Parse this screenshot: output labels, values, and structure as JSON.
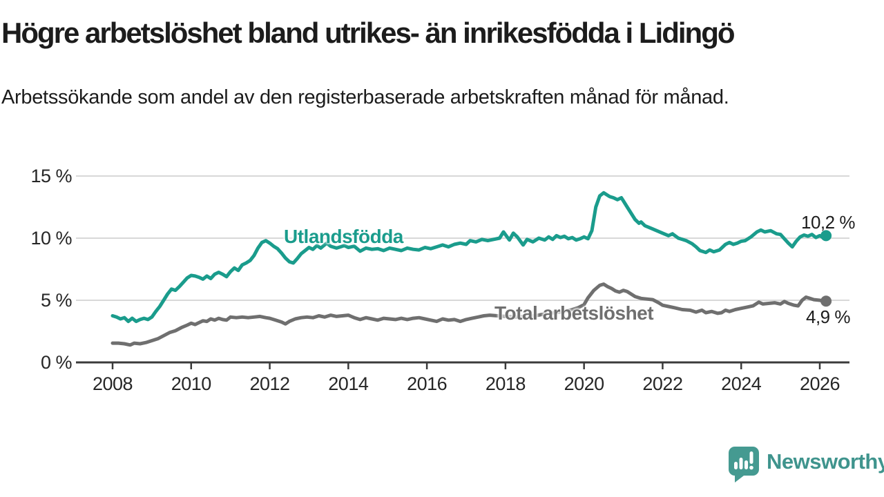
{
  "title": "Högre arbetslöshet bland utrikes- än inrikesfödda i Lidingö",
  "subtitle": "Arbetssökande som andel av den registerbaserade arbetskraften månad för månad.",
  "branding": {
    "logo_text": "Newsworthy",
    "logo_color": "#3f948d",
    "icon_color": "#459a91"
  },
  "chart_data": {
    "type": "line",
    "title": "Högre arbetslöshet bland utrikes- än inrikesfödda i Lidingö",
    "xlabel": "",
    "ylabel": "",
    "x_ticks": [
      2008,
      2010,
      2012,
      2014,
      2016,
      2018,
      2020,
      2022,
      2024,
      2026
    ],
    "y_ticks": [
      0,
      5,
      10,
      15
    ],
    "y_tick_labels": [
      "0 %",
      "5 %",
      "10 %",
      "15 %"
    ],
    "ylim": [
      0,
      16.5
    ],
    "xlim": [
      2007.05,
      2026.75
    ],
    "grid": "horizontal",
    "legend_position": "inline-labels",
    "axis_color": "#3a3a3a",
    "grid_color": "#d8d8d8",
    "series": [
      {
        "name": "Utlandsfödda",
        "color": "#1a9c8c",
        "end_label": "10,2 %",
        "end_value": 10.2,
        "points": [
          [
            2008.0,
            3.75
          ],
          [
            2008.1,
            3.65
          ],
          [
            2008.2,
            3.5
          ],
          [
            2008.3,
            3.6
          ],
          [
            2008.4,
            3.3
          ],
          [
            2008.5,
            3.55
          ],
          [
            2008.6,
            3.3
          ],
          [
            2008.7,
            3.45
          ],
          [
            2008.8,
            3.55
          ],
          [
            2008.9,
            3.45
          ],
          [
            2009.0,
            3.65
          ],
          [
            2009.1,
            4.1
          ],
          [
            2009.2,
            4.5
          ],
          [
            2009.3,
            5.0
          ],
          [
            2009.4,
            5.5
          ],
          [
            2009.5,
            5.9
          ],
          [
            2009.6,
            5.8
          ],
          [
            2009.7,
            6.1
          ],
          [
            2009.8,
            6.45
          ],
          [
            2009.9,
            6.8
          ],
          [
            2010.0,
            7.0
          ],
          [
            2010.1,
            6.95
          ],
          [
            2010.2,
            6.85
          ],
          [
            2010.3,
            6.7
          ],
          [
            2010.4,
            6.95
          ],
          [
            2010.5,
            6.75
          ],
          [
            2010.6,
            7.1
          ],
          [
            2010.7,
            7.25
          ],
          [
            2010.8,
            7.1
          ],
          [
            2010.9,
            6.9
          ],
          [
            2011.0,
            7.3
          ],
          [
            2011.1,
            7.6
          ],
          [
            2011.2,
            7.4
          ],
          [
            2011.3,
            7.85
          ],
          [
            2011.4,
            8.0
          ],
          [
            2011.5,
            8.2
          ],
          [
            2011.6,
            8.6
          ],
          [
            2011.7,
            9.2
          ],
          [
            2011.8,
            9.65
          ],
          [
            2011.9,
            9.8
          ],
          [
            2012.0,
            9.6
          ],
          [
            2012.1,
            9.35
          ],
          [
            2012.2,
            9.15
          ],
          [
            2012.3,
            8.8
          ],
          [
            2012.4,
            8.4
          ],
          [
            2012.5,
            8.1
          ],
          [
            2012.6,
            8.0
          ],
          [
            2012.7,
            8.35
          ],
          [
            2012.8,
            8.75
          ],
          [
            2012.9,
            9.0
          ],
          [
            2013.0,
            9.25
          ],
          [
            2013.1,
            9.1
          ],
          [
            2013.2,
            9.4
          ],
          [
            2013.3,
            9.2
          ],
          [
            2013.45,
            9.6
          ],
          [
            2013.55,
            9.35
          ],
          [
            2013.7,
            9.2
          ],
          [
            2013.8,
            9.3
          ],
          [
            2013.9,
            9.4
          ],
          [
            2014.0,
            9.25
          ],
          [
            2014.15,
            9.35
          ],
          [
            2014.3,
            8.95
          ],
          [
            2014.45,
            9.2
          ],
          [
            2014.6,
            9.1
          ],
          [
            2014.75,
            9.15
          ],
          [
            2014.9,
            9.0
          ],
          [
            2015.05,
            9.2
          ],
          [
            2015.2,
            9.1
          ],
          [
            2015.35,
            9.0
          ],
          [
            2015.5,
            9.2
          ],
          [
            2015.65,
            9.1
          ],
          [
            2015.8,
            9.05
          ],
          [
            2015.95,
            9.25
          ],
          [
            2016.1,
            9.15
          ],
          [
            2016.25,
            9.3
          ],
          [
            2016.4,
            9.45
          ],
          [
            2016.55,
            9.3
          ],
          [
            2016.7,
            9.5
          ],
          [
            2016.85,
            9.6
          ],
          [
            2017.0,
            9.5
          ],
          [
            2017.1,
            9.8
          ],
          [
            2017.25,
            9.7
          ],
          [
            2017.4,
            9.9
          ],
          [
            2017.55,
            9.8
          ],
          [
            2017.7,
            9.9
          ],
          [
            2017.85,
            10.0
          ],
          [
            2017.95,
            10.5
          ],
          [
            2018.1,
            9.85
          ],
          [
            2018.2,
            10.4
          ],
          [
            2018.3,
            10.1
          ],
          [
            2018.45,
            9.45
          ],
          [
            2018.55,
            9.9
          ],
          [
            2018.7,
            9.7
          ],
          [
            2018.85,
            10.0
          ],
          [
            2019.0,
            9.85
          ],
          [
            2019.1,
            10.1
          ],
          [
            2019.2,
            9.9
          ],
          [
            2019.3,
            10.2
          ],
          [
            2019.4,
            10.05
          ],
          [
            2019.5,
            10.15
          ],
          [
            2019.6,
            9.95
          ],
          [
            2019.7,
            10.05
          ],
          [
            2019.8,
            9.85
          ],
          [
            2019.9,
            9.95
          ],
          [
            2020.0,
            10.1
          ],
          [
            2020.1,
            9.95
          ],
          [
            2020.2,
            10.6
          ],
          [
            2020.3,
            12.5
          ],
          [
            2020.4,
            13.4
          ],
          [
            2020.5,
            13.65
          ],
          [
            2020.55,
            13.55
          ],
          [
            2020.65,
            13.35
          ],
          [
            2020.75,
            13.25
          ],
          [
            2020.85,
            13.1
          ],
          [
            2020.95,
            13.25
          ],
          [
            2021.0,
            13.0
          ],
          [
            2021.1,
            12.5
          ],
          [
            2021.2,
            12.0
          ],
          [
            2021.3,
            11.5
          ],
          [
            2021.4,
            11.2
          ],
          [
            2021.45,
            11.3
          ],
          [
            2021.55,
            11.0
          ],
          [
            2021.7,
            10.8
          ],
          [
            2021.85,
            10.6
          ],
          [
            2022.0,
            10.4
          ],
          [
            2022.15,
            10.2
          ],
          [
            2022.25,
            10.35
          ],
          [
            2022.4,
            10.0
          ],
          [
            2022.5,
            9.9
          ],
          [
            2022.6,
            9.8
          ],
          [
            2022.75,
            9.55
          ],
          [
            2022.85,
            9.3
          ],
          [
            2022.95,
            9.0
          ],
          [
            2023.1,
            8.85
          ],
          [
            2023.2,
            9.05
          ],
          [
            2023.3,
            8.9
          ],
          [
            2023.45,
            9.05
          ],
          [
            2023.6,
            9.5
          ],
          [
            2023.7,
            9.65
          ],
          [
            2023.8,
            9.5
          ],
          [
            2023.9,
            9.6
          ],
          [
            2024.0,
            9.75
          ],
          [
            2024.1,
            9.8
          ],
          [
            2024.25,
            10.1
          ],
          [
            2024.4,
            10.5
          ],
          [
            2024.5,
            10.65
          ],
          [
            2024.6,
            10.5
          ],
          [
            2024.75,
            10.6
          ],
          [
            2024.9,
            10.35
          ],
          [
            2025.0,
            10.3
          ],
          [
            2025.1,
            9.95
          ],
          [
            2025.2,
            9.6
          ],
          [
            2025.3,
            9.3
          ],
          [
            2025.4,
            9.75
          ],
          [
            2025.5,
            10.1
          ],
          [
            2025.6,
            10.25
          ],
          [
            2025.7,
            10.15
          ],
          [
            2025.8,
            10.3
          ],
          [
            2025.9,
            10.05
          ],
          [
            2026.0,
            10.2
          ],
          [
            2026.08,
            10.05
          ],
          [
            2026.16,
            10.2
          ]
        ]
      },
      {
        "name": "Total arbetslöshet",
        "color": "#6f6f6f",
        "end_label": "4,9 %",
        "end_value": 4.9,
        "points": [
          [
            2008.0,
            1.55
          ],
          [
            2008.15,
            1.55
          ],
          [
            2008.3,
            1.5
          ],
          [
            2008.45,
            1.4
          ],
          [
            2008.55,
            1.55
          ],
          [
            2008.7,
            1.5
          ],
          [
            2008.85,
            1.6
          ],
          [
            2009.0,
            1.75
          ],
          [
            2009.15,
            1.9
          ],
          [
            2009.3,
            2.15
          ],
          [
            2009.45,
            2.4
          ],
          [
            2009.6,
            2.55
          ],
          [
            2009.75,
            2.8
          ],
          [
            2009.9,
            3.0
          ],
          [
            2010.0,
            3.15
          ],
          [
            2010.1,
            3.05
          ],
          [
            2010.2,
            3.2
          ],
          [
            2010.3,
            3.35
          ],
          [
            2010.4,
            3.3
          ],
          [
            2010.5,
            3.5
          ],
          [
            2010.6,
            3.4
          ],
          [
            2010.7,
            3.55
          ],
          [
            2010.8,
            3.45
          ],
          [
            2010.9,
            3.4
          ],
          [
            2011.0,
            3.65
          ],
          [
            2011.15,
            3.6
          ],
          [
            2011.3,
            3.65
          ],
          [
            2011.45,
            3.6
          ],
          [
            2011.6,
            3.65
          ],
          [
            2011.75,
            3.7
          ],
          [
            2011.9,
            3.6
          ],
          [
            2012.0,
            3.55
          ],
          [
            2012.15,
            3.4
          ],
          [
            2012.3,
            3.25
          ],
          [
            2012.4,
            3.1
          ],
          [
            2012.5,
            3.3
          ],
          [
            2012.65,
            3.5
          ],
          [
            2012.8,
            3.6
          ],
          [
            2012.95,
            3.65
          ],
          [
            2013.1,
            3.6
          ],
          [
            2013.25,
            3.75
          ],
          [
            2013.4,
            3.65
          ],
          [
            2013.55,
            3.8
          ],
          [
            2013.7,
            3.7
          ],
          [
            2013.85,
            3.75
          ],
          [
            2014.0,
            3.8
          ],
          [
            2014.15,
            3.6
          ],
          [
            2014.3,
            3.45
          ],
          [
            2014.45,
            3.6
          ],
          [
            2014.6,
            3.5
          ],
          [
            2014.75,
            3.4
          ],
          [
            2014.9,
            3.55
          ],
          [
            2015.05,
            3.5
          ],
          [
            2015.2,
            3.45
          ],
          [
            2015.35,
            3.55
          ],
          [
            2015.5,
            3.45
          ],
          [
            2015.65,
            3.55
          ],
          [
            2015.8,
            3.6
          ],
          [
            2015.95,
            3.5
          ],
          [
            2016.1,
            3.4
          ],
          [
            2016.25,
            3.3
          ],
          [
            2016.4,
            3.5
          ],
          [
            2016.55,
            3.4
          ],
          [
            2016.7,
            3.45
          ],
          [
            2016.85,
            3.3
          ],
          [
            2017.0,
            3.45
          ],
          [
            2017.15,
            3.55
          ],
          [
            2017.3,
            3.65
          ],
          [
            2017.45,
            3.75
          ],
          [
            2017.6,
            3.8
          ],
          [
            2017.8,
            3.75
          ],
          [
            2018.0,
            3.7
          ],
          [
            2018.25,
            3.65
          ],
          [
            2018.5,
            3.7
          ],
          [
            2018.75,
            3.75
          ],
          [
            2019.0,
            3.9
          ],
          [
            2019.25,
            4.0
          ],
          [
            2019.5,
            4.1
          ],
          [
            2019.7,
            4.25
          ],
          [
            2019.85,
            4.4
          ],
          [
            2020.0,
            4.65
          ],
          [
            2020.1,
            5.2
          ],
          [
            2020.25,
            5.8
          ],
          [
            2020.4,
            6.2
          ],
          [
            2020.5,
            6.3
          ],
          [
            2020.6,
            6.1
          ],
          [
            2020.7,
            5.95
          ],
          [
            2020.8,
            5.75
          ],
          [
            2020.9,
            5.65
          ],
          [
            2021.0,
            5.8
          ],
          [
            2021.1,
            5.7
          ],
          [
            2021.2,
            5.5
          ],
          [
            2021.3,
            5.3
          ],
          [
            2021.45,
            5.15
          ],
          [
            2021.6,
            5.1
          ],
          [
            2021.75,
            5.05
          ],
          [
            2021.9,
            4.8
          ],
          [
            2022.0,
            4.6
          ],
          [
            2022.15,
            4.5
          ],
          [
            2022.3,
            4.4
          ],
          [
            2022.5,
            4.25
          ],
          [
            2022.7,
            4.2
          ],
          [
            2022.85,
            4.05
          ],
          [
            2023.0,
            4.2
          ],
          [
            2023.1,
            4.0
          ],
          [
            2023.25,
            4.1
          ],
          [
            2023.4,
            3.95
          ],
          [
            2023.5,
            4.0
          ],
          [
            2023.6,
            4.2
          ],
          [
            2023.7,
            4.1
          ],
          [
            2023.85,
            4.25
          ],
          [
            2024.0,
            4.35
          ],
          [
            2024.15,
            4.45
          ],
          [
            2024.3,
            4.55
          ],
          [
            2024.45,
            4.85
          ],
          [
            2024.55,
            4.7
          ],
          [
            2024.7,
            4.75
          ],
          [
            2024.85,
            4.8
          ],
          [
            2025.0,
            4.7
          ],
          [
            2025.1,
            4.9
          ],
          [
            2025.2,
            4.75
          ],
          [
            2025.35,
            4.6
          ],
          [
            2025.45,
            4.55
          ],
          [
            2025.55,
            5.0
          ],
          [
            2025.65,
            5.25
          ],
          [
            2025.75,
            5.15
          ],
          [
            2025.85,
            5.05
          ],
          [
            2026.0,
            5.0
          ],
          [
            2026.08,
            4.95
          ],
          [
            2026.16,
            4.93
          ]
        ]
      }
    ]
  }
}
